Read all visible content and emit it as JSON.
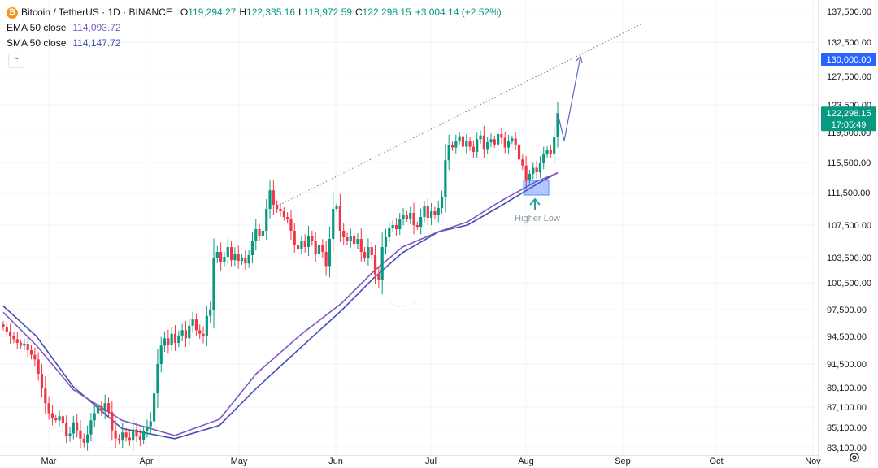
{
  "legend": {
    "symbol": "Bitcoin / TetherUS · 1D · BINANCE",
    "symbol_icon": "bitcoin-icon",
    "open_label": "O",
    "open": "119,294.27",
    "high_label": "H",
    "high": "122,335.16",
    "low_label": "L",
    "low": "118,972.59",
    "close_label": "C",
    "close": "122,298.15",
    "change": "+3,004.14 (+2.52%)",
    "ema_name": "EMA 50 close",
    "ema_value": "114,093.72",
    "sma_name": "SMA 50 close",
    "sma_value": "114,147.72"
  },
  "colors": {
    "up": "#089981",
    "down": "#f23645",
    "ema": "#7e57c2",
    "sma": "#3f51b5",
    "target_badge": "#2962ff",
    "price_badge": "#089981",
    "annotation": "#26a69a"
  },
  "chart_data": {
    "type": "candlestick",
    "symbol": "Bitcoin / TetherUS",
    "timeframe": "1D",
    "exchange": "BINANCE",
    "x_ticks": [
      "Mar",
      "Apr",
      "May",
      "Jun",
      "Jul",
      "Aug",
      "Sep",
      "Oct",
      "Nov"
    ],
    "y_ticks": [
      "137,500.00",
      "132,500.00",
      "127,500.00",
      "123,500.00",
      "119,500.00",
      "115,500.00",
      "111,500.00",
      "107,500.00",
      "103,500.00",
      "100,500.00",
      "97,500.00",
      "94,500.00",
      "91,500.00",
      "89,100.00",
      "87,100.00",
      "85,100.00",
      "83,100.00"
    ],
    "y_values": [
      137500,
      132500,
      127500,
      123500,
      119500,
      115500,
      111500,
      107500,
      103500,
      100500,
      97500,
      94500,
      91500,
      89100,
      87100,
      85100,
      83100
    ],
    "last_price": 122298.15,
    "last_price_label": "122,298.15",
    "countdown": "17:05:49",
    "target_price": 130000,
    "target_label": "130,000.00",
    "annotation": "Higher Low",
    "candles_close": [
      95500,
      95000,
      94500,
      94200,
      93800,
      93500,
      93700,
      93000,
      92500,
      92000,
      90500,
      89000,
      87500,
      86500,
      86000,
      85800,
      86200,
      85500,
      84300,
      84500,
      85600,
      84800,
      84000,
      83600,
      84400,
      85800,
      86500,
      87200,
      86700,
      87500,
      86600,
      84800,
      84000,
      83800,
      84600,
      84100,
      83800,
      84900,
      84200,
      83900,
      84700,
      85200,
      85700,
      88500,
      91500,
      93500,
      94300,
      93600,
      94800,
      93800,
      94600,
      95200,
      94300,
      95700,
      96400,
      95200,
      94800,
      94500,
      96800,
      97500,
      103500,
      104200,
      103000,
      103600,
      104800,
      103200,
      104000,
      103100,
      103500,
      102800,
      103800,
      105500,
      107000,
      106200,
      106800,
      109500,
      111800,
      110000,
      109500,
      109200,
      108500,
      108200,
      106800,
      105000,
      104500,
      105600,
      104800,
      106200,
      105500,
      104000,
      105000,
      104200,
      102500,
      105800,
      109500,
      109800,
      106800,
      106000,
      105500,
      106200,
      105200,
      105800,
      104200,
      103500,
      104800,
      103800,
      101500,
      100800,
      104800,
      106000,
      107200,
      107500,
      107000,
      108200,
      108800,
      108300,
      109000,
      107500,
      107300,
      108500,
      109800,
      108400,
      109200,
      108700,
      109600,
      111000,
      115800,
      117800,
      117500,
      118300,
      119000,
      117600,
      118300,
      117600,
      116900,
      118600,
      119100,
      117300,
      118200,
      118600,
      117900,
      119300,
      118800,
      117500,
      118300,
      118700,
      117900,
      115900,
      115100,
      113200,
      114000,
      114800,
      114200,
      115500,
      116600,
      117200,
      116700,
      118900,
      122298
    ],
    "ema50": [
      97200,
      93500,
      88900,
      85800,
      84300,
      85900,
      90500,
      94700,
      98200,
      101900,
      104800,
      106700,
      107900,
      110400,
      113000,
      114094
    ],
    "sma50": [
      97900,
      94500,
      89200,
      85000,
      84000,
      85300,
      89000,
      93300,
      97400,
      101100,
      104100,
      106700,
      107500,
      109800,
      112600,
      114148
    ],
    "trendline": {
      "from_price": 109800,
      "to_price": 135500
    },
    "projection": [
      122298,
      118400,
      130400
    ]
  }
}
